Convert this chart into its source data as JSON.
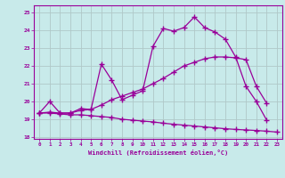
{
  "line1_x": [
    0,
    1,
    2,
    3,
    4,
    5,
    6,
    7,
    8,
    9,
    10,
    11,
    12,
    13,
    14,
    15,
    16,
    17,
    18,
    19,
    20,
    21,
    22
  ],
  "line1_y": [
    19.35,
    20.0,
    19.35,
    19.35,
    19.6,
    19.55,
    22.1,
    21.2,
    20.1,
    20.35,
    20.6,
    23.1,
    24.1,
    23.95,
    24.15,
    24.75,
    24.15,
    23.9,
    23.5,
    22.5,
    20.85,
    20.0,
    18.95
  ],
  "line2_x": [
    0,
    1,
    2,
    3,
    4,
    5,
    6,
    7,
    8,
    9,
    10,
    11,
    12,
    13,
    14,
    15,
    16,
    17,
    18,
    19,
    20,
    21,
    22
  ],
  "line2_y": [
    19.35,
    19.4,
    19.35,
    19.35,
    19.5,
    19.55,
    19.8,
    20.1,
    20.3,
    20.5,
    20.7,
    21.0,
    21.3,
    21.65,
    22.0,
    22.2,
    22.4,
    22.5,
    22.5,
    22.45,
    22.35,
    20.85,
    19.9
  ],
  "line3_x": [
    0,
    1,
    2,
    3,
    4,
    5,
    6,
    7,
    8,
    9,
    10,
    11,
    12,
    13,
    14,
    15,
    16,
    17,
    18,
    19,
    20,
    21,
    22,
    23
  ],
  "line3_y": [
    19.35,
    19.35,
    19.3,
    19.25,
    19.25,
    19.2,
    19.15,
    19.1,
    19.0,
    18.95,
    18.9,
    18.85,
    18.78,
    18.72,
    18.67,
    18.62,
    18.57,
    18.52,
    18.47,
    18.43,
    18.4,
    18.37,
    18.33,
    18.28
  ],
  "line_color": "#990099",
  "bg_color": "#c8eaea",
  "grid_color": "#b0c8c8",
  "ylim": [
    17.9,
    25.4
  ],
  "xlim": [
    -0.5,
    23.5
  ],
  "yticks": [
    18,
    19,
    20,
    21,
    22,
    23,
    24,
    25
  ],
  "xticks": [
    0,
    1,
    2,
    3,
    4,
    5,
    6,
    7,
    8,
    9,
    10,
    11,
    12,
    13,
    14,
    15,
    16,
    17,
    18,
    19,
    20,
    21,
    22,
    23
  ],
  "xlabel": "Windchill (Refroidissement éolien,°C)"
}
